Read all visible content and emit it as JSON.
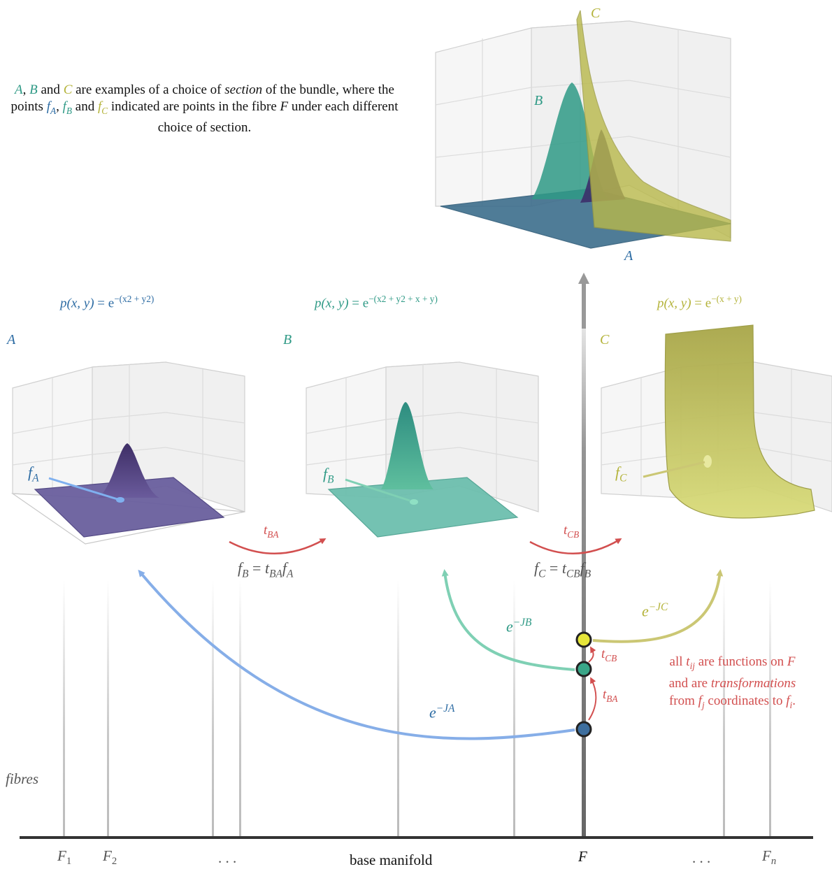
{
  "description": {
    "a": "A",
    "comma": ", ",
    "b": "B",
    "and1": " and ",
    "c": "C",
    "part1": " are examples of a choice of ",
    "section_word": "section",
    "part2": " of the bundle, where the points ",
    "fa": "f",
    "fa_sub": "A",
    "comma2": ", ",
    "fb": "f",
    "fb_sub": "B",
    "and2": " and ",
    "fc": "f",
    "fc_sub": "C",
    "part3": " indicated are points in the fibre ",
    "f": "F",
    "part4": " under each different choice of section."
  },
  "top": {
    "a": "A",
    "b": "B",
    "c": "C"
  },
  "formulas": {
    "a": {
      "lhs": "p(x, y)",
      "eq": " = e",
      "exp": "−(x2 + y2)"
    },
    "b": {
      "lhs": "p(x, y)",
      "eq": " = e",
      "exp": "−(x2 + y2 + x + y)"
    },
    "c": {
      "lhs": "p(x, y)",
      "eq": " = e",
      "exp": "−(x + y)"
    }
  },
  "panels": {
    "a": "A",
    "b": "B",
    "c": "C"
  },
  "points": {
    "fa": "f",
    "fa_sub": "A",
    "fb": "f",
    "fb_sub": "B",
    "fc": "f",
    "fc_sub": "C"
  },
  "transforms": {
    "t_ba": "t",
    "t_ba_sub": "BA",
    "t_cb": "t",
    "t_cb_sub": "CB"
  },
  "equations": {
    "e1": {
      "a": "f",
      "a_sub": "B",
      "eq": " = ",
      "t": "t",
      "t_sub": "BA",
      "f": "f",
      "f_sub": "A"
    },
    "e2": {
      "a": "f",
      "a_sub": "C",
      "eq": " = ",
      "t": "t",
      "t_sub": "CB",
      "f": "f",
      "f_sub": "B"
    }
  },
  "exps": {
    "a": {
      "base": "e",
      "sup": "−JA"
    },
    "b": {
      "base": "e",
      "sup": "−JB"
    },
    "c": {
      "base": "e",
      "sup": "−JC"
    }
  },
  "note": {
    "l1a": "all ",
    "t": "t",
    "t_sub": "ij",
    "l1b": " are functions on ",
    "F": "F",
    "l2a": "and are ",
    "transformations": "transformations",
    "l3a": "from ",
    "fj": "f",
    "fj_sub": "j",
    "l3b": " coordinates to ",
    "fi": "f",
    "fi_sub": "i",
    "period": "."
  },
  "labels": {
    "fibres": "fibres"
  },
  "base": {
    "f1": "F",
    "f1_sub": "1",
    "f2": "F",
    "f2_sub": "2",
    "dots1": ". . .",
    "manifold": "base manifold",
    "f": "F",
    "dots2": ". . .",
    "fn": "F",
    "fn_sub": "n"
  },
  "colors": {
    "section_a": "#2c6ba3",
    "section_b": "#2f9a86",
    "section_c": "#b4b33a",
    "transform": "#d24f4f"
  }
}
